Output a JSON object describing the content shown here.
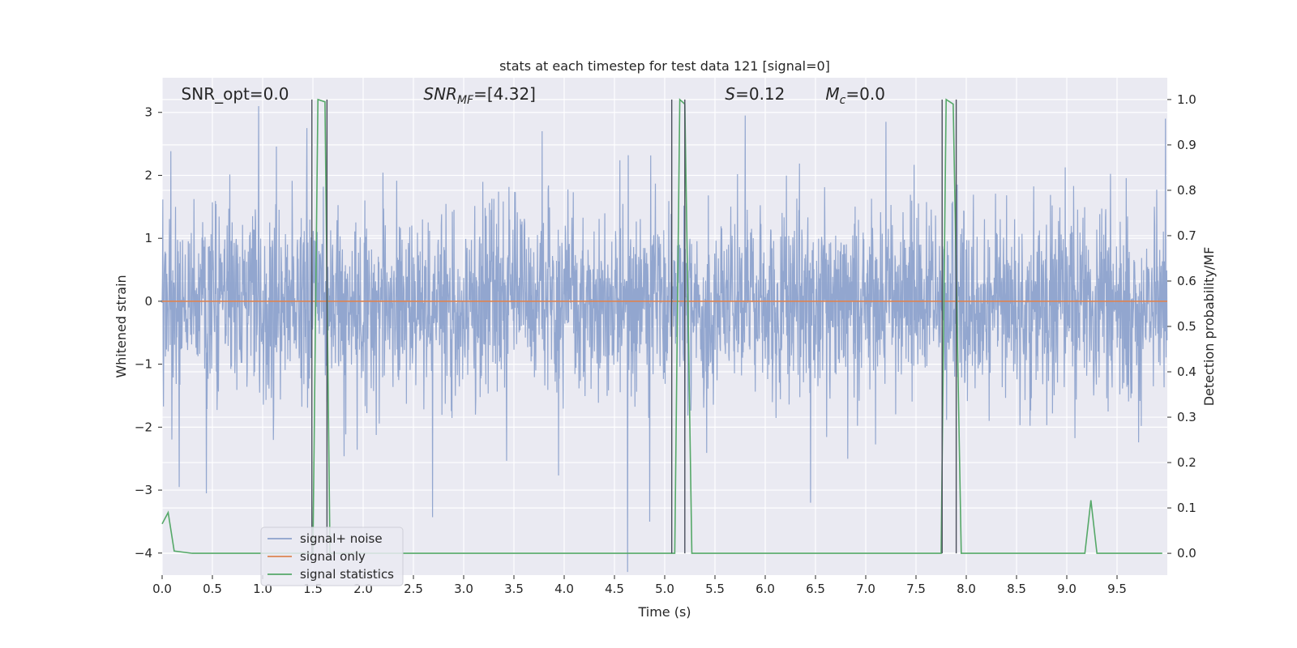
{
  "chart_data": {
    "type": "line",
    "title": "stats at each timestep for test data 121 [signal=0]",
    "xlabel": "Time (s)",
    "ylabel": "Whitened strain",
    "y2label": "Detection probability/MF",
    "xlim": [
      0.0,
      10.0
    ],
    "ylim": [
      -4.35,
      3.55
    ],
    "y2lim": [
      -0.048,
      1.048
    ],
    "xticks": [
      0.0,
      0.5,
      1.0,
      1.5,
      2.0,
      2.5,
      3.0,
      3.5,
      4.0,
      4.5,
      5.0,
      5.5,
      6.0,
      6.5,
      7.0,
      7.5,
      8.0,
      8.5,
      9.0,
      9.5
    ],
    "xtick_labels": [
      "0.0",
      "0.5",
      "1.0",
      "1.5",
      "2.0",
      "2.5",
      "3.0",
      "3.5",
      "4.0",
      "4.5",
      "5.0",
      "5.5",
      "6.0",
      "6.5",
      "7.0",
      "7.5",
      "8.0",
      "8.5",
      "9.0",
      "9.5"
    ],
    "yticks": [
      -4,
      -3,
      -2,
      -1,
      0,
      1,
      2,
      3
    ],
    "ytick_labels": [
      "−4",
      "−3",
      "−2",
      "−1",
      "0",
      "1",
      "2",
      "3"
    ],
    "y2ticks": [
      0.0,
      0.1,
      0.2,
      0.3,
      0.4,
      0.5,
      0.6,
      0.7,
      0.8,
      0.9,
      1.0
    ],
    "y2tick_labels": [
      "0.0",
      "0.1",
      "0.2",
      "0.3",
      "0.4",
      "0.5",
      "0.6",
      "0.7",
      "0.8",
      "0.9",
      "1.0"
    ],
    "grid": true,
    "legend_position": "lower-left",
    "annotations": [
      {
        "text": "SNR_opt=0.0",
        "x": 0.19
      },
      {
        "text": "SNR",
        "sub": "MF",
        "suffix": "=[4.32]",
        "x": 2.6
      },
      {
        "text": "S",
        "suffix": "=0.12",
        "x": 5.6
      },
      {
        "text": "M",
        "sub": "c",
        "suffix": "=0.0",
        "x": 6.6
      }
    ],
    "series": [
      {
        "name": "signal+ noise",
        "color": "#8da2cc",
        "axis": "left",
        "kind": "noise",
        "std": 0.58,
        "x_range": [
          0.0,
          9.998
        ],
        "spikes": [
          {
            "x": 0.17,
            "y": -2.95
          },
          {
            "x": 0.44,
            "y": -3.05
          },
          {
            "x": 0.96,
            "y": 3.1
          },
          {
            "x": 2.69,
            "y": -3.43
          },
          {
            "x": 4.63,
            "y": -4.3
          },
          {
            "x": 4.85,
            "y": -3.5
          },
          {
            "x": 5.8,
            "y": 2.95
          },
          {
            "x": 6.45,
            "y": -3.2
          },
          {
            "x": 9.98,
            "y": 2.9
          },
          {
            "x": 1.44,
            "y": 2.75
          },
          {
            "x": 3.78,
            "y": 2.7
          },
          {
            "x": 7.2,
            "y": 2.85
          }
        ]
      },
      {
        "name": "signal only",
        "color": "#dd8452",
        "axis": "left",
        "x": [
          0.0,
          10.0
        ],
        "y": [
          0.0,
          0.0
        ]
      },
      {
        "name": "signal statistics",
        "color": "#55a868",
        "axis": "right",
        "x": [
          0.0,
          0.06,
          0.12,
          0.3,
          1.48,
          1.5,
          1.55,
          1.62,
          1.67,
          5.05,
          5.1,
          5.15,
          5.2,
          5.27,
          7.75,
          7.8,
          7.87,
          7.95,
          9.18,
          9.24,
          9.3,
          9.95
        ],
        "y": [
          0.065,
          0.09,
          0.005,
          0.0,
          0.0,
          0.0,
          1.0,
          0.995,
          0.0,
          0.0,
          0.0,
          1.0,
          0.99,
          0.0,
          0.0,
          1.0,
          0.99,
          0.0,
          0.0,
          0.117,
          0.0,
          0.0
        ]
      }
    ],
    "vlines": [
      {
        "x": 1.49,
        "axis": "right",
        "y0": 0.0,
        "y1": 1.0
      },
      {
        "x": 1.64,
        "axis": "right",
        "y0": 0.0,
        "y1": 1.0
      },
      {
        "x": 5.07,
        "axis": "right",
        "y0": 0.0,
        "y1": 1.0
      },
      {
        "x": 5.2,
        "axis": "right",
        "y0": 0.0,
        "y1": 1.0
      },
      {
        "x": 7.76,
        "axis": "right",
        "y0": 0.0,
        "y1": 1.0
      },
      {
        "x": 7.9,
        "axis": "right",
        "y0": 0.0,
        "y1": 1.0
      }
    ],
    "vline_color": "#4a4f5c",
    "plot_bg": "#eaeaf2",
    "grid_color": "#ffffff"
  }
}
